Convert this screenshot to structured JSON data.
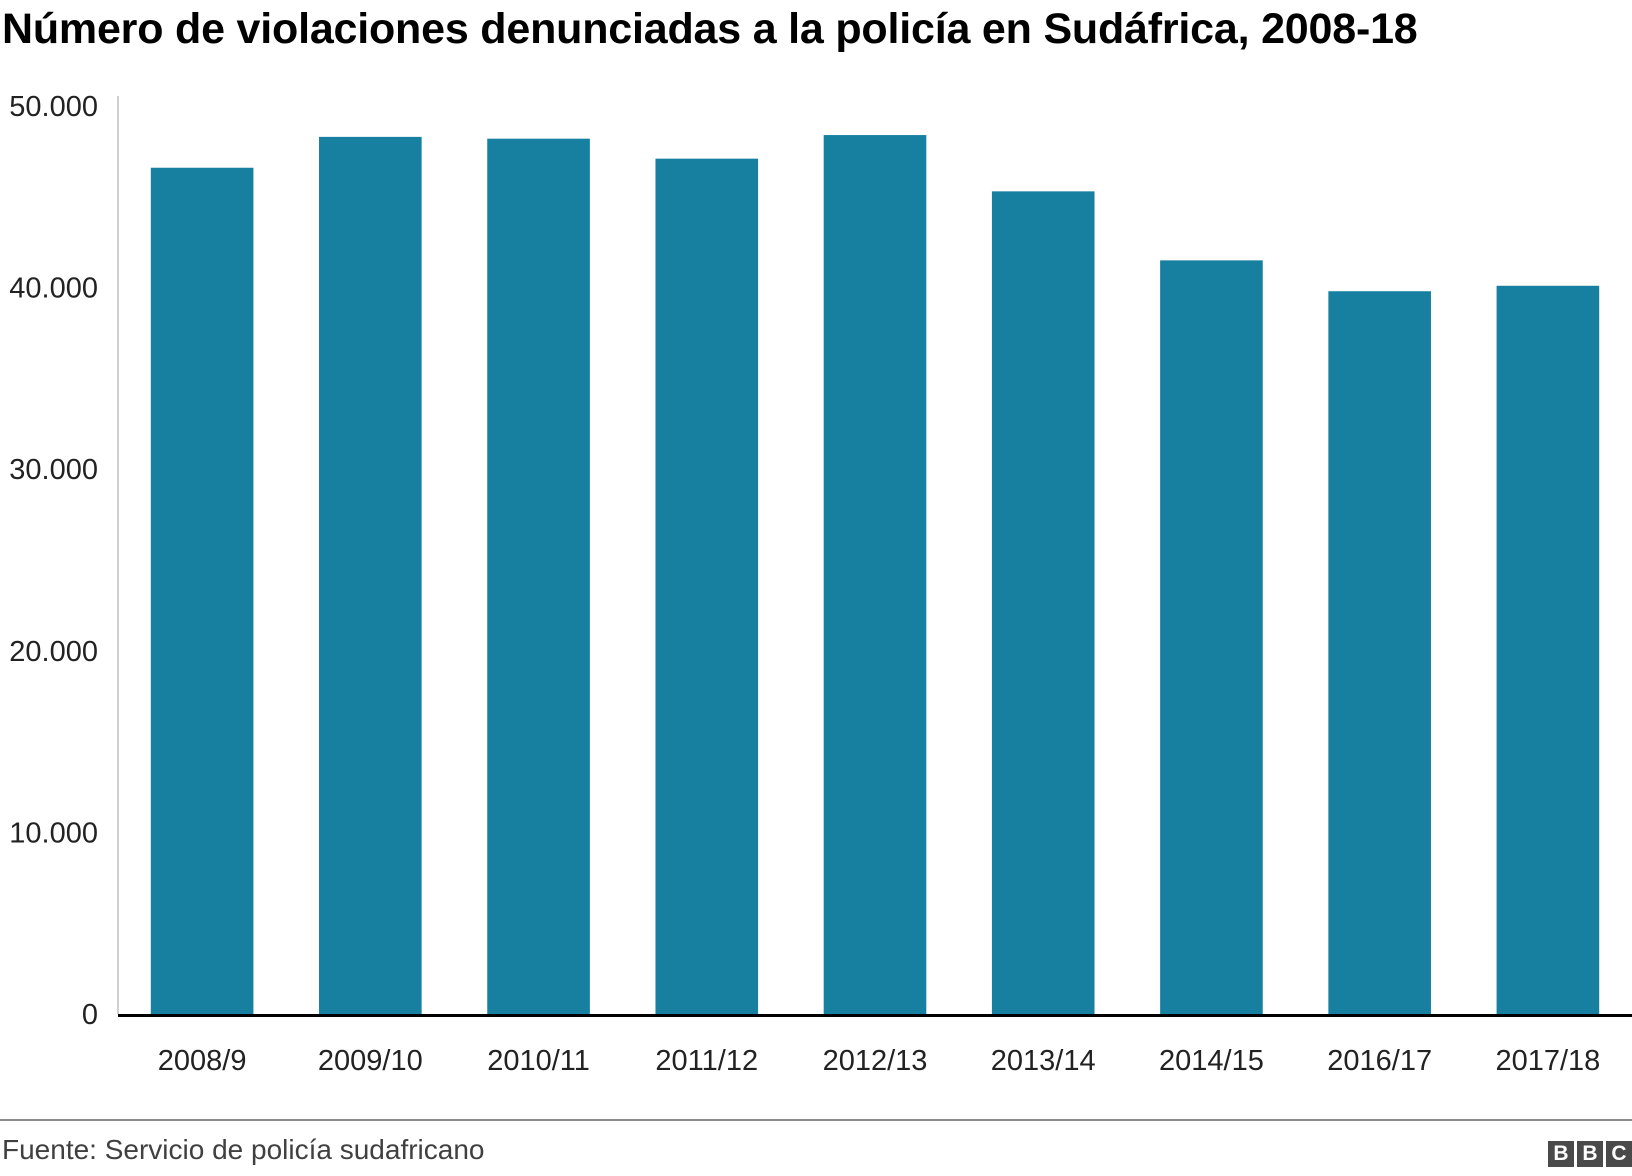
{
  "header": {
    "title": "Número de violaciones denunciadas a la policía en Sudáfrica, 2008-18"
  },
  "chart_data": {
    "type": "bar",
    "title": "Número de violaciones denunciadas a la policía en Sudáfrica, 2008-18",
    "xlabel": "",
    "ylabel": "",
    "categories": [
      "2008/9",
      "2009/10",
      "2010/11",
      "2011/12",
      "2012/13",
      "2013/14",
      "2014/15",
      "2016/17",
      "2017/18"
    ],
    "values": [
      46600,
      48300,
      48200,
      47100,
      48400,
      45300,
      41500,
      39800,
      40100
    ],
    "ylim": [
      0,
      50000
    ],
    "yticks": [
      0,
      10000,
      20000,
      30000,
      40000,
      50000
    ],
    "ytick_labels": [
      "0",
      "10.000",
      "20.000",
      "30.000",
      "40.000",
      "50.000"
    ],
    "grid": false,
    "bar_color": "#1780a1",
    "axis_color": "#000000"
  },
  "footer": {
    "source": "Fuente: Servicio de policía sudafricano",
    "logo_letters": [
      "B",
      "B",
      "C"
    ]
  }
}
